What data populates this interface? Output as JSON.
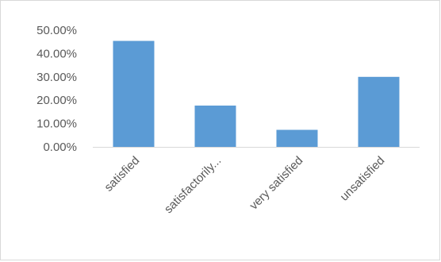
{
  "chart_data": {
    "type": "bar",
    "categories": [
      "satisfied",
      "satisfactorily...",
      "very satisfied",
      "unsatisfied"
    ],
    "values": [
      45.4,
      17.7,
      7.3,
      30.0
    ],
    "value_unit": "%",
    "ylim": [
      0,
      50
    ],
    "yticks": [
      "0.00%",
      "10.00%",
      "20.00%",
      "30.00%",
      "40.00%",
      "50.00%"
    ],
    "title": "",
    "xlabel": "",
    "ylabel": "",
    "grid": false,
    "legend": "none",
    "bar_color": "#5b9bd5"
  }
}
